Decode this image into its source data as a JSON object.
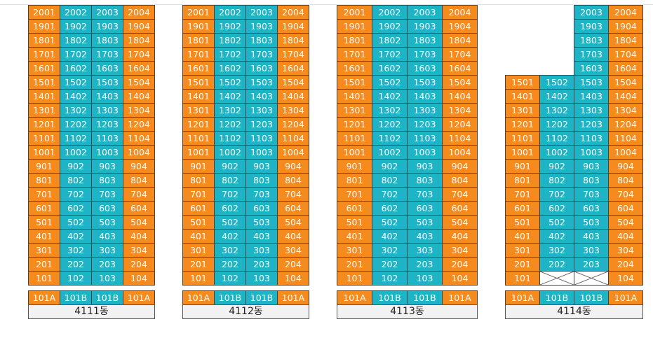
{
  "buildings": [
    {
      "name": "4111동",
      "base": [
        "101A",
        "101B",
        "101B",
        "101A"
      ],
      "floors": [
        [
          "2001",
          "2002",
          "2003",
          "2004"
        ],
        [
          "1901",
          "1902",
          "1903",
          "1904"
        ],
        [
          "1801",
          "1802",
          "1803",
          "1804"
        ],
        [
          "1701",
          "1702",
          "1703",
          "1704"
        ],
        [
          "1601",
          "1602",
          "1603",
          "1604"
        ],
        [
          "1501",
          "1502",
          "1503",
          "1504"
        ],
        [
          "1401",
          "1402",
          "1403",
          "1404"
        ],
        [
          "1301",
          "1302",
          "1303",
          "1304"
        ],
        [
          "1201",
          "1202",
          "1203",
          "1204"
        ],
        [
          "1101",
          "1102",
          "1103",
          "1104"
        ],
        [
          "1001",
          "1002",
          "1003",
          "1004"
        ],
        [
          "901",
          "902",
          "903",
          "904"
        ],
        [
          "801",
          "802",
          "803",
          "804"
        ],
        [
          "701",
          "702",
          "703",
          "704"
        ],
        [
          "601",
          "602",
          "603",
          "604"
        ],
        [
          "501",
          "502",
          "503",
          "504"
        ],
        [
          "401",
          "402",
          "403",
          "404"
        ],
        [
          "301",
          "302",
          "303",
          "304"
        ],
        [
          "201",
          "202",
          "203",
          "204"
        ],
        [
          "101",
          "102",
          "103",
          "104"
        ]
      ]
    },
    {
      "name": "4112동",
      "base": [
        "101A",
        "101B",
        "101B",
        "101A"
      ],
      "floors": [
        [
          "2001",
          "2002",
          "2003",
          "2004"
        ],
        [
          "1901",
          "1902",
          "1903",
          "1904"
        ],
        [
          "1801",
          "1802",
          "1803",
          "1804"
        ],
        [
          "1701",
          "1702",
          "1703",
          "1704"
        ],
        [
          "1601",
          "1602",
          "1603",
          "1604"
        ],
        [
          "1501",
          "1502",
          "1503",
          "1504"
        ],
        [
          "1401",
          "1402",
          "1403",
          "1404"
        ],
        [
          "1301",
          "1302",
          "1303",
          "1304"
        ],
        [
          "1201",
          "1202",
          "1203",
          "1204"
        ],
        [
          "1101",
          "1102",
          "1103",
          "1104"
        ],
        [
          "1001",
          "1002",
          "1003",
          "1004"
        ],
        [
          "901",
          "902",
          "903",
          "904"
        ],
        [
          "801",
          "802",
          "803",
          "804"
        ],
        [
          "701",
          "702",
          "703",
          "704"
        ],
        [
          "601",
          "602",
          "603",
          "604"
        ],
        [
          "501",
          "502",
          "503",
          "504"
        ],
        [
          "401",
          "402",
          "403",
          "404"
        ],
        [
          "301",
          "302",
          "303",
          "304"
        ],
        [
          "201",
          "202",
          "203",
          "204"
        ],
        [
          "101",
          "102",
          "103",
          "104"
        ]
      ]
    },
    {
      "name": "4113동",
      "base": [
        "101A",
        "101B",
        "101B",
        "101A"
      ],
      "floors": [
        [
          "2001",
          "2002",
          "2003",
          "2004"
        ],
        [
          "1901",
          "1902",
          "1903",
          "1904"
        ],
        [
          "1801",
          "1802",
          "1803",
          "1804"
        ],
        [
          "1701",
          "1702",
          "1703",
          "1704"
        ],
        [
          "1601",
          "1602",
          "1603",
          "1604"
        ],
        [
          "1501",
          "1502",
          "1503",
          "1504"
        ],
        [
          "1401",
          "1402",
          "1403",
          "1404"
        ],
        [
          "1301",
          "1302",
          "1303",
          "1304"
        ],
        [
          "1201",
          "1202",
          "1203",
          "1204"
        ],
        [
          "1101",
          "1102",
          "1103",
          "1104"
        ],
        [
          "1001",
          "1002",
          "1003",
          "1004"
        ],
        [
          "901",
          "902",
          "903",
          "904"
        ],
        [
          "801",
          "802",
          "803",
          "804"
        ],
        [
          "701",
          "702",
          "703",
          "704"
        ],
        [
          "601",
          "602",
          "603",
          "604"
        ],
        [
          "501",
          "502",
          "503",
          "504"
        ],
        [
          "401",
          "402",
          "403",
          "404"
        ],
        [
          "301",
          "302",
          "303",
          "304"
        ],
        [
          "201",
          "202",
          "203",
          "204"
        ],
        [
          "101",
          "102",
          "103",
          "104"
        ]
      ]
    },
    {
      "name": "4114동",
      "base": [
        "101A",
        "101B",
        "101B",
        "101A"
      ],
      "floors": [
        [
          null,
          null,
          "2003",
          "2004"
        ],
        [
          null,
          null,
          "1903",
          "1904"
        ],
        [
          null,
          null,
          "1803",
          "1804"
        ],
        [
          null,
          null,
          "1703",
          "1704"
        ],
        [
          null,
          null,
          "1603",
          "1604"
        ],
        [
          "1501",
          "1502",
          "1503",
          "1504"
        ],
        [
          "1401",
          "1402",
          "1403",
          "1404"
        ],
        [
          "1301",
          "1302",
          "1303",
          "1304"
        ],
        [
          "1201",
          "1202",
          "1203",
          "1204"
        ],
        [
          "1101",
          "1102",
          "1103",
          "1104"
        ],
        [
          "1001",
          "1002",
          "1003",
          "1004"
        ],
        [
          "901",
          "902",
          "903",
          "904"
        ],
        [
          "801",
          "802",
          "803",
          "804"
        ],
        [
          "701",
          "702",
          "703",
          "704"
        ],
        [
          "601",
          "602",
          "603",
          "604"
        ],
        [
          "501",
          "502",
          "503",
          "504"
        ],
        [
          "401",
          "402",
          "403",
          "404"
        ],
        [
          "301",
          "302",
          "303",
          "304"
        ],
        [
          "201",
          "202",
          "203",
          "204"
        ],
        [
          "101",
          null,
          null,
          "104"
        ]
      ]
    }
  ]
}
